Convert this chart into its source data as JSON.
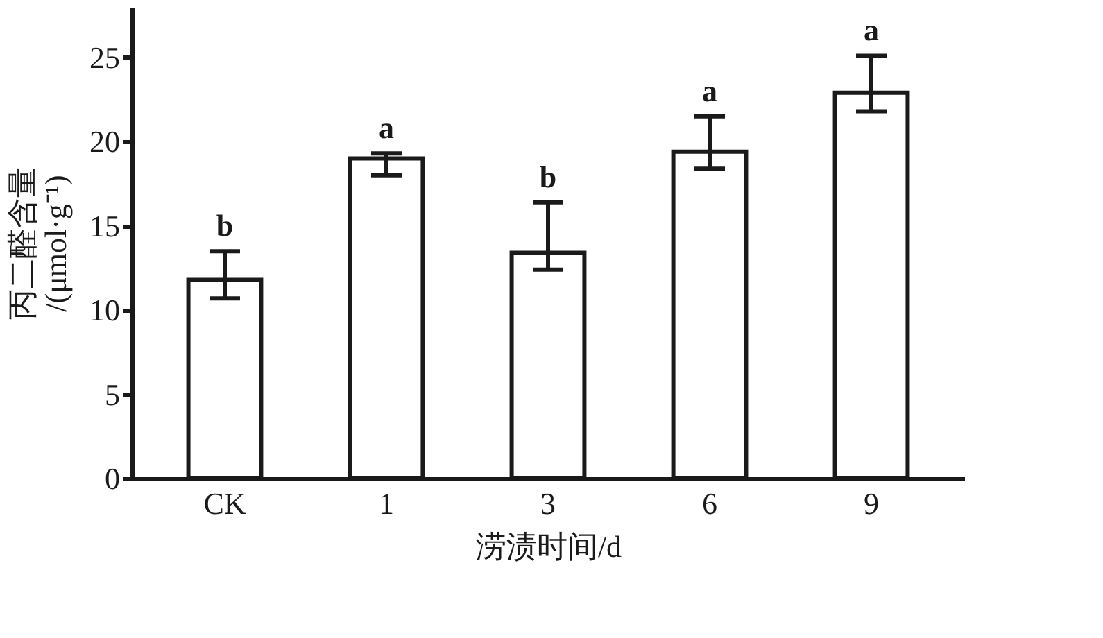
{
  "chart_data": {
    "type": "bar",
    "xlabel": "涝渍时间/d",
    "ylabel": "丙二醛含量\n/(μmol·g⁻¹)",
    "categories": [
      "CK",
      "1",
      "3",
      "6",
      "9"
    ],
    "series": [
      {
        "color": "#ffffff",
        "values": [
          11.8,
          19.0,
          13.4,
          19.4,
          22.9
        ],
        "errors": [
          [
            10.7,
            13.5
          ],
          [
            18.0,
            19.3
          ],
          [
            12.4,
            16.4
          ],
          [
            18.4,
            21.5
          ],
          [
            21.8,
            25.1
          ]
        ]
      }
    ],
    "ylim": [
      0,
      28
    ],
    "yticks": [
      0,
      5,
      10,
      15,
      20,
      25
    ],
    "grid": false,
    "annotations": [
      {
        "text": "b",
        "x": "CK",
        "y": 13.5
      },
      {
        "text": "a",
        "x": "1",
        "y": 19.3
      },
      {
        "text": "b",
        "x": "3",
        "y": 16.4
      },
      {
        "text": "a",
        "x": "6",
        "y": 21.5
      },
      {
        "text": "a",
        "x": "9",
        "y": 25.1
      }
    ]
  }
}
